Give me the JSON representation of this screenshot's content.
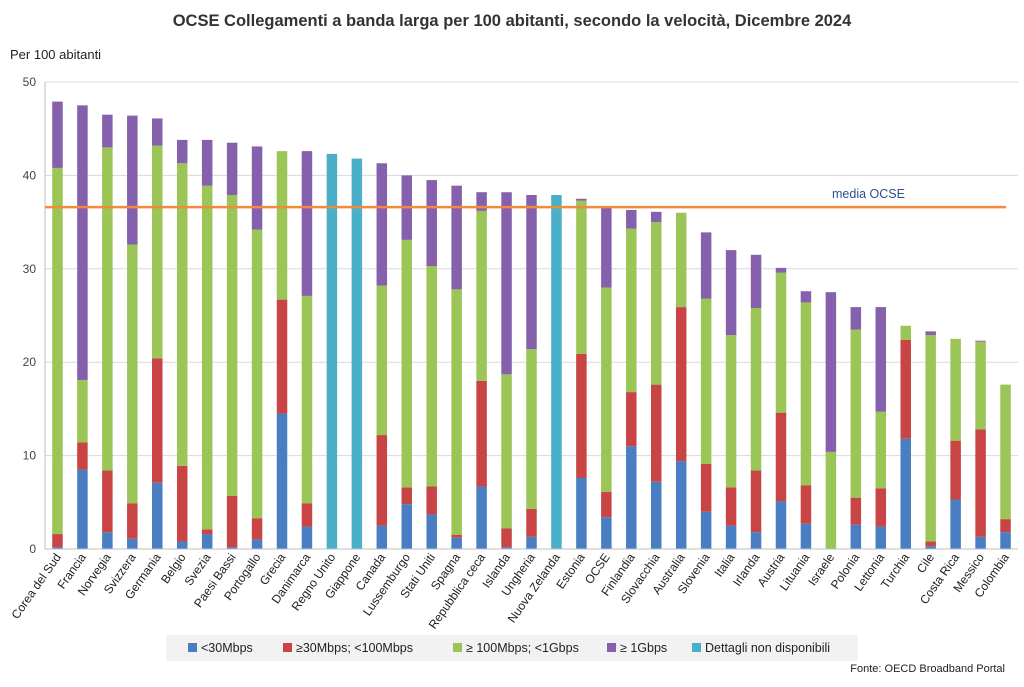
{
  "chart_data": {
    "type": "bar",
    "stacked": true,
    "title": "OCSE Collegamenti a banda larga per 100 abitanti, secondo la velocità, Dicembre 2024",
    "ylabel": "Per 100 abitanti",
    "xlabel": "",
    "ylim": [
      0,
      50
    ],
    "yticks": [
      0,
      10,
      20,
      30,
      40,
      50
    ],
    "grid": true,
    "legend_position": "bottom",
    "source_note": "Fonte: OECD Broadband Portal",
    "reference_line": {
      "label": "media OCSE",
      "value": 36.6,
      "color": "#F08A3C"
    },
    "categories": [
      "Corea del Sud",
      "Francia",
      "Norvegia",
      "Svizzera",
      "Germania",
      "Belgio",
      "Svezia",
      "Paesi Bassi",
      "Portogallo",
      "Grecia",
      "Danimarca",
      "Regno Unito",
      "Giappone",
      "Canada",
      "Lussemburgo",
      "Stati Uniti",
      "Spagna",
      "Repubblica ceca",
      "Islanda",
      "Ungheria",
      "Nuova Zelanda",
      "Estonia",
      "OCSE",
      "Finlandia",
      "Slovacchia",
      "Australia",
      "Slovenia",
      "Italia",
      "Irlanda",
      "Austria",
      "Lituania",
      "Israele",
      "Polonia",
      "Lettonia",
      "Turchia",
      "Cile",
      "Costa Rica",
      "Messico",
      "Colombia"
    ],
    "series": [
      {
        "name": "<30Mbps",
        "color": "#4A7EC2",
        "values": [
          0.2,
          8.5,
          1.8,
          1.1,
          7.1,
          0.8,
          1.6,
          0.2,
          1.0,
          14.5,
          2.4,
          0,
          0,
          2.5,
          4.8,
          3.7,
          1.2,
          6.7,
          0.2,
          1.3,
          0,
          7.6,
          3.4,
          11.0,
          7.2,
          9.4,
          4.0,
          2.5,
          1.8,
          5.1,
          2.7,
          0,
          2.6,
          2.4,
          11.8,
          0.3,
          5.3,
          1.3,
          1.8
        ]
      },
      {
        "name": "≥30Mbps;  <100Mbps",
        "color": "#C94545",
        "values": [
          1.4,
          2.9,
          6.6,
          3.8,
          13.3,
          8.1,
          0.5,
          5.5,
          2.3,
          12.2,
          2.5,
          0,
          0,
          9.7,
          1.8,
          3.0,
          0.3,
          11.3,
          2.0,
          3.0,
          0,
          13.3,
          2.7,
          5.8,
          10.4,
          16.5,
          5.1,
          4.1,
          6.6,
          9.5,
          4.1,
          0,
          2.9,
          4.1,
          10.6,
          0.5,
          6.3,
          11.5,
          1.4
        ]
      },
      {
        "name": "≥ 100Mbps; <1Gbps",
        "color": "#9BC556",
        "values": [
          39.2,
          6.7,
          34.6,
          27.7,
          22.8,
          32.4,
          36.8,
          32.2,
          30.9,
          15.9,
          22.2,
          0,
          0,
          16.0,
          26.5,
          23.6,
          26.3,
          18.2,
          16.5,
          17.1,
          0,
          16.4,
          21.9,
          17.5,
          17.4,
          10.1,
          17.7,
          16.3,
          17.4,
          15.0,
          19.6,
          10.4,
          18.0,
          8.2,
          1.5,
          22.1,
          10.9,
          9.4,
          14.4
        ]
      },
      {
        "name": "≥ 1Gbps",
        "color": "#8560AC",
        "values": [
          7.1,
          29.4,
          3.5,
          13.8,
          2.9,
          2.5,
          4.9,
          5.6,
          8.9,
          0,
          15.5,
          0,
          0,
          13.1,
          6.9,
          9.2,
          11.1,
          2.0,
          19.5,
          16.5,
          0,
          0.2,
          8.6,
          2.0,
          1.1,
          0,
          7.1,
          9.1,
          5.7,
          0.5,
          1.2,
          17.1,
          2.4,
          11.2,
          0,
          0.4,
          0,
          0.1,
          0
        ]
      },
      {
        "name": "Dettagli non disponibili",
        "color": "#4AAFC8",
        "values": [
          0,
          0,
          0,
          0,
          0,
          0,
          0,
          0,
          0,
          0,
          0,
          42.3,
          41.8,
          0,
          0,
          0,
          0,
          0,
          0,
          0,
          37.9,
          0,
          0,
          0,
          0,
          0,
          0,
          0,
          0,
          0,
          0,
          0,
          0,
          0,
          0,
          0,
          0,
          0,
          0
        ]
      }
    ]
  }
}
